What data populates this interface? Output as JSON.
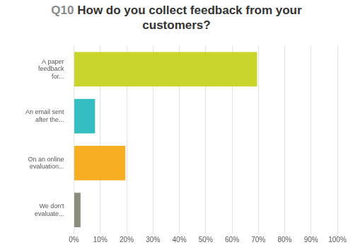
{
  "chart_data": {
    "type": "bar",
    "orientation": "horizontal",
    "title": "Q10 How do you collect feedback from your customers?",
    "categories": [
      "A paper feedback for...",
      "An email sent after the...",
      "On an online evaluation...",
      "We don't evaluate..."
    ],
    "values": [
      69.5,
      8,
      19.5,
      2.5
    ],
    "colors": [
      "#c9d52a",
      "#35bec1",
      "#f7ae23",
      "#8c8c7c"
    ],
    "xlim": [
      0,
      100
    ],
    "xticks": [
      {
        "value": 0,
        "label": "0%"
      },
      {
        "value": 10,
        "label": "10%"
      },
      {
        "value": 20,
        "label": "20%"
      },
      {
        "value": 30,
        "label": "30%"
      },
      {
        "value": 40,
        "label": "40%"
      },
      {
        "value": 50,
        "label": "50%"
      },
      {
        "value": 60,
        "label": "60%"
      },
      {
        "value": 70,
        "label": "70%"
      },
      {
        "value": 80,
        "label": "80%"
      },
      {
        "value": 90,
        "label": "90%"
      },
      {
        "value": 100,
        "label": "100%"
      }
    ],
    "grid": true
  }
}
